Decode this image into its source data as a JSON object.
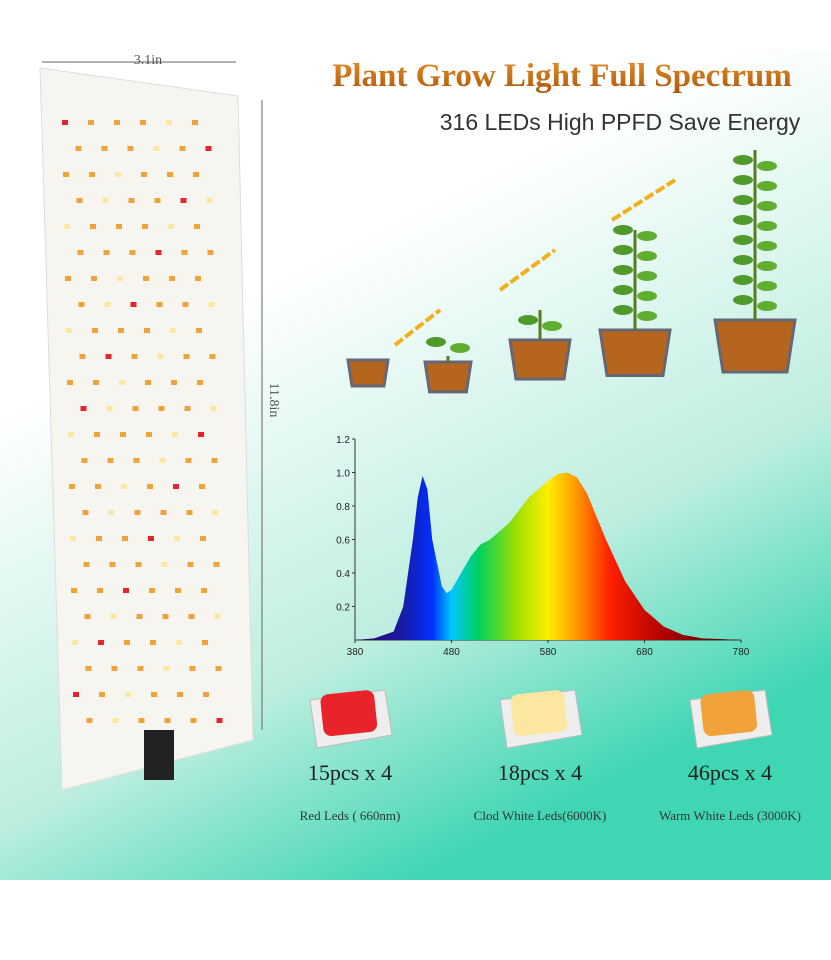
{
  "header": {
    "title": "Plant Grow Light Full Spectrum",
    "subtitle": "316 LEDs High PPFD Save Energy"
  },
  "panel": {
    "width_label": "3.1in",
    "height_label": "11.8in"
  },
  "chart_data": {
    "type": "area",
    "x": [
      380,
      400,
      420,
      430,
      440,
      445,
      450,
      455,
      460,
      470,
      475,
      480,
      490,
      500,
      510,
      520,
      540,
      560,
      580,
      590,
      600,
      610,
      620,
      640,
      660,
      680,
      700,
      720,
      740,
      760,
      780
    ],
    "values": [
      0,
      0.01,
      0.05,
      0.2,
      0.6,
      0.85,
      0.98,
      0.9,
      0.6,
      0.32,
      0.28,
      0.3,
      0.4,
      0.5,
      0.57,
      0.6,
      0.7,
      0.85,
      0.95,
      0.99,
      1.0,
      0.97,
      0.88,
      0.6,
      0.35,
      0.18,
      0.08,
      0.03,
      0.01,
      0.005,
      0
    ],
    "xlim": [
      380,
      780
    ],
    "ylim": [
      0,
      1.2
    ],
    "xticks": [
      380,
      480,
      580,
      680,
      780
    ],
    "yticks": [
      0.2,
      0.4,
      0.6,
      0.8,
      {
        "value": 1,
        "label": "1.0"
      },
      1.2
    ]
  },
  "leds": [
    {
      "count": "15pcs x 4",
      "label": "Red Leds ( 660nm)",
      "color": "#e8232b"
    },
    {
      "count": "18pcs x 4",
      "label": "Clod White Leds(6000K)",
      "color": "#fbe7a0"
    },
    {
      "count": "46pcs x 4",
      "label": "Warm White Leds  (3000K)",
      "color": "#f2a23a"
    }
  ]
}
